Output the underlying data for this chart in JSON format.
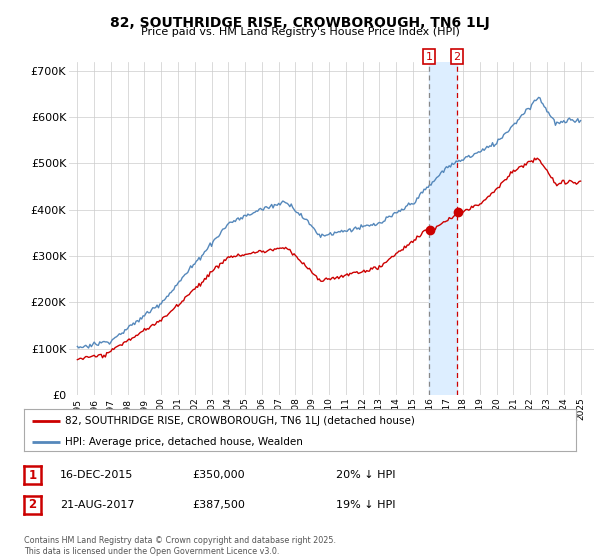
{
  "title": "82, SOUTHRIDGE RISE, CROWBOROUGH, TN6 1LJ",
  "subtitle": "Price paid vs. HM Land Registry's House Price Index (HPI)",
  "legend_label_red": "82, SOUTHRIDGE RISE, CROWBOROUGH, TN6 1LJ (detached house)",
  "legend_label_blue": "HPI: Average price, detached house, Wealden",
  "red_color": "#cc0000",
  "blue_color": "#5588bb",
  "blue_shade_color": "#ddeeff",
  "marker1_date": "16-DEC-2015",
  "marker1_price": 350000,
  "marker1_hpi_diff": "20% ↓ HPI",
  "marker2_date": "21-AUG-2017",
  "marker2_price": 387500,
  "marker2_hpi_diff": "19% ↓ HPI",
  "copyright_text": "Contains HM Land Registry data © Crown copyright and database right 2025.\nThis data is licensed under the Open Government Licence v3.0.",
  "ylim": [
    0,
    720000
  ],
  "yticks": [
    0,
    100000,
    200000,
    300000,
    400000,
    500000,
    600000,
    700000
  ],
  "ytick_labels": [
    "£0",
    "£100K",
    "£200K",
    "£300K",
    "£400K",
    "£500K",
    "£600K",
    "£700K"
  ],
  "marker1_x": 2015.96,
  "marker2_x": 2017.64,
  "xmin": 1994.5,
  "xmax": 2025.8
}
